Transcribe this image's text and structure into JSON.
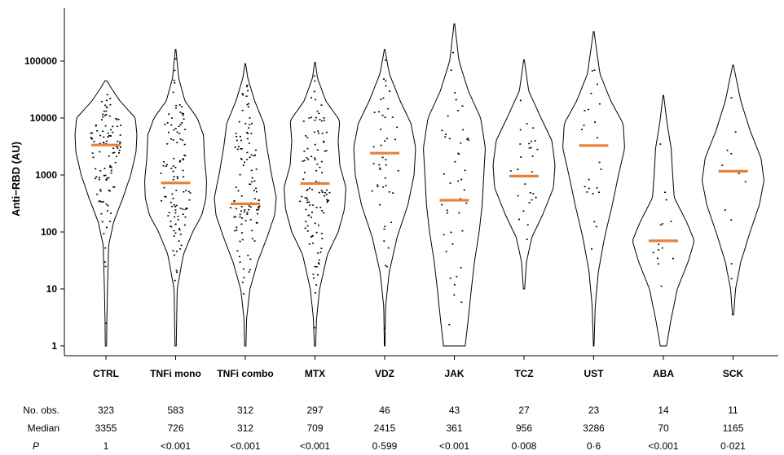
{
  "chart_data": {
    "type": "violin",
    "ylabel": "Anti−RBD (AU)",
    "y_scale": "log10",
    "ylim": [
      1,
      200000
    ],
    "y_ticks": [
      1,
      10,
      100,
      1000,
      10000,
      100000
    ],
    "y_tick_labels": [
      "1",
      "10",
      "100",
      "1000",
      "10000",
      "100000"
    ],
    "median_color": "#E8803A",
    "categories": [
      "CTRL",
      "TNFi mono",
      "TNFi combo",
      "MTX",
      "VDZ",
      "JAK",
      "TCZ",
      "UST",
      "ABA",
      "SCK"
    ],
    "series": [
      {
        "category": "CTRL",
        "median": 3355,
        "range": [
          1,
          45000
        ],
        "density": [
          [
            1,
            0.02
          ],
          [
            3,
            0.03
          ],
          [
            10,
            0.05
          ],
          [
            60,
            0.09
          ],
          [
            150,
            0.25
          ],
          [
            400,
            0.55
          ],
          [
            1000,
            0.8
          ],
          [
            2500,
            0.97
          ],
          [
            5000,
            1.0
          ],
          [
            10000,
            0.95
          ],
          [
            20000,
            0.45
          ],
          [
            35000,
            0.15
          ],
          [
            45000,
            0.03
          ]
        ]
      },
      {
        "category": "TNFi mono",
        "median": 726,
        "range": [
          1,
          160000
        ],
        "density": [
          [
            1,
            0.02
          ],
          [
            10,
            0.05
          ],
          [
            40,
            0.25
          ],
          [
            100,
            0.55
          ],
          [
            200,
            0.85
          ],
          [
            400,
            0.98
          ],
          [
            800,
            1.0
          ],
          [
            2000,
            0.93
          ],
          [
            5000,
            0.9
          ],
          [
            10000,
            0.7
          ],
          [
            20000,
            0.3
          ],
          [
            50000,
            0.1
          ],
          [
            160000,
            0.01
          ]
        ]
      },
      {
        "category": "TNFi combo",
        "median": 312,
        "range": [
          1,
          90000
        ],
        "density": [
          [
            1,
            0.02
          ],
          [
            3,
            0.04
          ],
          [
            10,
            0.15
          ],
          [
            30,
            0.4
          ],
          [
            80,
            0.7
          ],
          [
            200,
            0.95
          ],
          [
            400,
            1.0
          ],
          [
            1000,
            0.85
          ],
          [
            3000,
            0.7
          ],
          [
            8000,
            0.6
          ],
          [
            20000,
            0.3
          ],
          [
            50000,
            0.08
          ],
          [
            90000,
            0.01
          ]
        ]
      },
      {
        "category": "MTX",
        "median": 709,
        "range": [
          1,
          95000
        ],
        "density": [
          [
            1,
            0.02
          ],
          [
            3,
            0.05
          ],
          [
            10,
            0.15
          ],
          [
            40,
            0.4
          ],
          [
            100,
            0.75
          ],
          [
            250,
            0.95
          ],
          [
            600,
            1.0
          ],
          [
            1500,
            0.8
          ],
          [
            4000,
            0.75
          ],
          [
            9000,
            0.8
          ],
          [
            20000,
            0.35
          ],
          [
            50000,
            0.08
          ],
          [
            95000,
            0.01
          ]
        ]
      },
      {
        "category": "VDZ",
        "median": 2415,
        "range": [
          1,
          160000
        ],
        "density": [
          [
            1,
            0.01
          ],
          [
            5,
            0.03
          ],
          [
            20,
            0.15
          ],
          [
            80,
            0.4
          ],
          [
            300,
            0.75
          ],
          [
            1000,
            0.95
          ],
          [
            3000,
            1.0
          ],
          [
            8000,
            0.85
          ],
          [
            20000,
            0.5
          ],
          [
            60000,
            0.15
          ],
          [
            160000,
            0.01
          ]
        ]
      },
      {
        "category": "JAK",
        "median": 361,
        "range": [
          1,
          450000
        ],
        "density": [
          [
            1,
            0.35
          ],
          [
            3,
            0.45
          ],
          [
            10,
            0.55
          ],
          [
            30,
            0.65
          ],
          [
            100,
            0.8
          ],
          [
            300,
            0.9
          ],
          [
            1000,
            0.95
          ],
          [
            3000,
            1.0
          ],
          [
            10000,
            0.85
          ],
          [
            30000,
            0.45
          ],
          [
            100000,
            0.15
          ],
          [
            450000,
            0.01
          ]
        ]
      },
      {
        "category": "TCZ",
        "median": 956,
        "range": [
          10,
          105000
        ],
        "density": [
          [
            10,
            0.02
          ],
          [
            30,
            0.08
          ],
          [
            80,
            0.25
          ],
          [
            200,
            0.6
          ],
          [
            600,
            0.95
          ],
          [
            1500,
            1.0
          ],
          [
            4000,
            0.9
          ],
          [
            10000,
            0.55
          ],
          [
            30000,
            0.15
          ],
          [
            105000,
            0.01
          ]
        ]
      },
      {
        "category": "UST",
        "median": 3286,
        "range": [
          1,
          330000
        ],
        "density": [
          [
            1,
            0.01
          ],
          [
            5,
            0.05
          ],
          [
            20,
            0.15
          ],
          [
            80,
            0.35
          ],
          [
            300,
            0.6
          ],
          [
            1000,
            0.8
          ],
          [
            3000,
            1.0
          ],
          [
            8000,
            0.95
          ],
          [
            20000,
            0.55
          ],
          [
            60000,
            0.2
          ],
          [
            330000,
            0.01
          ]
        ]
      },
      {
        "category": "ABA",
        "median": 70,
        "range": [
          1,
          25000
        ],
        "density": [
          [
            1,
            0.1
          ],
          [
            3,
            0.25
          ],
          [
            10,
            0.45
          ],
          [
            30,
            0.8
          ],
          [
            70,
            1.0
          ],
          [
            150,
            0.75
          ],
          [
            400,
            0.35
          ],
          [
            1000,
            0.3
          ],
          [
            3000,
            0.25
          ],
          [
            8000,
            0.12
          ],
          [
            25000,
            0.01
          ]
        ]
      },
      {
        "category": "SCK",
        "median": 1165,
        "range": [
          3.5,
          85000
        ],
        "density": [
          [
            3.5,
            0.02
          ],
          [
            10,
            0.08
          ],
          [
            30,
            0.25
          ],
          [
            100,
            0.55
          ],
          [
            300,
            0.85
          ],
          [
            800,
            1.0
          ],
          [
            2000,
            0.9
          ],
          [
            6000,
            0.55
          ],
          [
            20000,
            0.25
          ],
          [
            85000,
            0.01
          ]
        ]
      }
    ]
  },
  "table": {
    "row_labels": [
      "No. obs.",
      "Median",
      "P"
    ],
    "n_obs": [
      "323",
      "583",
      "312",
      "297",
      "46",
      "43",
      "27",
      "23",
      "14",
      "11"
    ],
    "median": [
      "3355",
      "726",
      "312",
      "709",
      "2415",
      "361",
      "956",
      "3286",
      "70",
      "1165"
    ],
    "p": [
      "1",
      "<0.001",
      "<0.001",
      "<0.001",
      "0·599",
      "<0.001",
      "0·008",
      "0·6",
      "<0.001",
      "0·021"
    ]
  }
}
